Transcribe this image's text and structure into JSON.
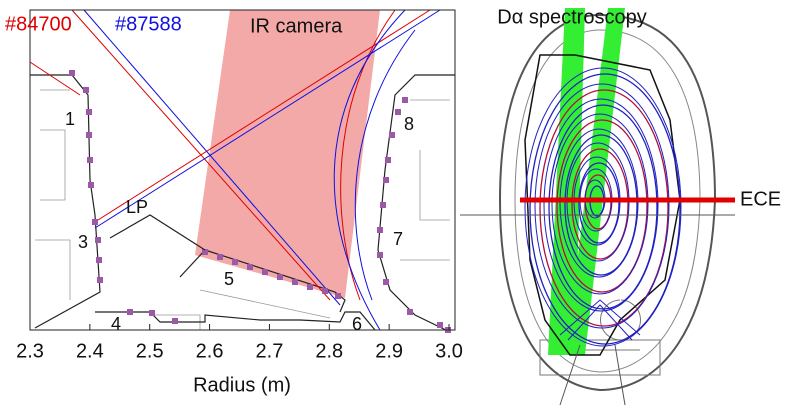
{
  "left_panel": {
    "legend": [
      {
        "label": "#84700",
        "color": "#e00000"
      },
      {
        "label": "#87588",
        "color": "#1010e0"
      }
    ],
    "camera_label": "IR camera",
    "xlim": [
      2.3,
      3.01
    ],
    "xticks": [
      2.3,
      2.4,
      2.5,
      2.6,
      2.7,
      2.8,
      2.9,
      {
        "value": 3.0,
        "label": "3.0"
      }
    ],
    "xlabel": "Radius (m)",
    "region_labels": [
      "1",
      "8",
      "LP",
      "3",
      "7",
      "5",
      "4",
      "6"
    ]
  },
  "right_panel": {
    "spectroscopy_label": "Dα spectroscopy",
    "ece_label": "ECE"
  }
}
